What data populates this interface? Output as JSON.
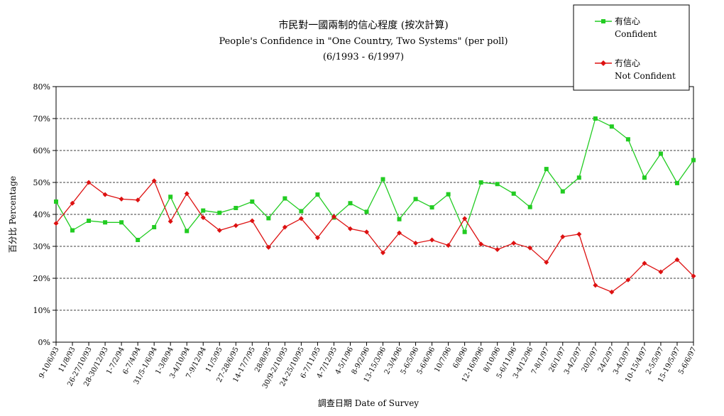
{
  "chart_data": {
    "type": "line",
    "title": "市民對一國兩制的信心程度 (按次計算)",
    "subtitle": "People's Confidence in \"One Country, Two Systems\" (per poll)",
    "subtitle2": "(6/1993 - 6/1997)",
    "xlabel": "調查日期 Date of Survey",
    "ylabel": "百分比 Percentage",
    "ylim": [
      0,
      80
    ],
    "yticks": [
      "0%",
      "10%",
      "20%",
      "30%",
      "40%",
      "50%",
      "60%",
      "70%",
      "80%"
    ],
    "grid": true,
    "legend_position": "top-right",
    "categories": [
      "9-10/6/93",
      "11/8/93",
      "26-27/10/93",
      "28-30/12/93",
      "1-7/2/94",
      "6-7/4/94",
      "31/5-1/6/94",
      "1-3/8/94",
      "3-4/10/94",
      "7-9/12/94",
      "11/5/95",
      "27-28/6/95",
      "14-17/7/95",
      "28/8/95",
      "30/9-2/10/95",
      "24-25/10/95",
      "6-7/11/95",
      "4-7/12/95",
      "4-5/1/96",
      "8-9/2/96",
      "13-15/3/96",
      "2-3/4/96",
      "5-6/5/96",
      "5-6/6/96",
      "10/7/96",
      "6/8/96",
      "12-16/9/96",
      "8/10/96",
      "5-6/11/96",
      "3-4/12/96",
      "7-8/1/97",
      "26/1/97",
      "3-4/2/97",
      "20/2/97",
      "24/2/97",
      "3-4/3/97",
      "10-15/4/97",
      "2-5/5/97",
      "15-19/5/97",
      "5-6/6/97"
    ],
    "series": [
      {
        "name": "有信心",
        "name_en": "Confident",
        "color": "#22cc22",
        "marker": "square",
        "values": [
          44,
          35,
          38,
          37.5,
          37.5,
          32,
          36,
          45.5,
          34.8,
          41.2,
          40.5,
          42,
          44,
          38.8,
          45,
          41,
          46.2,
          39,
          43.5,
          40.8,
          51,
          38.5,
          44.8,
          42.2,
          46.3,
          34.5,
          50,
          49.5,
          46.5,
          42.3,
          54.2,
          47.2,
          51.5,
          70,
          67.5,
          63.5,
          51.5,
          59,
          49.8,
          57
        ]
      },
      {
        "name": "冇信心",
        "name_en": "Not Confident",
        "color": "#dd1111",
        "marker": "diamond",
        "values": [
          37.2,
          43.5,
          50,
          46.2,
          44.8,
          44.5,
          50.5,
          37.8,
          46.5,
          39,
          35,
          36.5,
          38,
          29.7,
          36,
          38.7,
          32.7,
          39.3,
          35.5,
          34.5,
          28,
          34.2,
          31,
          32,
          30.3,
          38.7,
          30.7,
          29,
          31,
          29.5,
          25,
          33,
          33.8,
          17.8,
          15.7,
          19.5,
          24.7,
          22,
          25.8,
          20.7
        ]
      }
    ]
  }
}
